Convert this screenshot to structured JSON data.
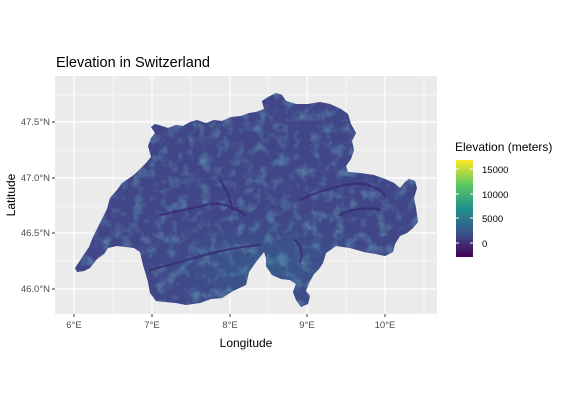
{
  "map": {
    "title": "Elevation in Switzerland",
    "xlabel": "Longitude",
    "ylabel": "Latitude",
    "x_ticks": [
      "6°E",
      "7°E",
      "8°E",
      "9°E",
      "10°E"
    ],
    "y_ticks": [
      "47.5°N",
      "47.0°N",
      "46.5°N",
      "46.0°N"
    ],
    "legend": {
      "title": "Elevation (meters)",
      "labels": [
        "15000",
        "10000",
        "5000",
        "0"
      ]
    },
    "colors": {
      "panel_bg": "#ebebeb",
      "grid": "#ffffff",
      "terrain_base": "#3f4a8a",
      "terrain_low": "#423e85",
      "terrain_high": "#2a8a8c",
      "viridis": [
        "#fde725",
        "#5ec962",
        "#21918c",
        "#3b528b",
        "#440154"
      ]
    }
  }
}
